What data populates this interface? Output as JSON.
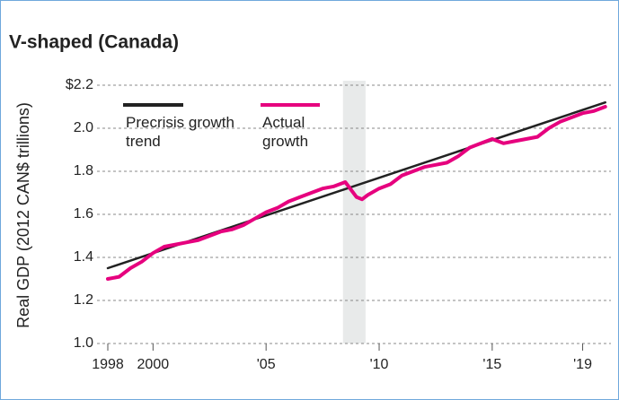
{
  "chart_data": {
    "type": "line",
    "title": "V-shaped (Canada)",
    "y_label": "Real GDP (2012 CAN$ trillions)",
    "xlim": [
      1998,
      2020.25
    ],
    "xticks": [
      {
        "value": 1998,
        "label": "1998"
      },
      {
        "value": 2000,
        "label": "2000"
      },
      {
        "value": 2005,
        "label": "'05"
      },
      {
        "value": 2010,
        "label": "'10"
      },
      {
        "value": 2015,
        "label": "'15"
      },
      {
        "value": 2019,
        "label": "'19"
      }
    ],
    "ylim": [
      1.0,
      2.2
    ],
    "yticks": [
      {
        "value": 1.0,
        "label": "1.0"
      },
      1.2,
      1.4,
      1.6,
      1.8,
      {
        "value": 2.0,
        "label": "2.0"
      },
      {
        "value": 2.2,
        "label": "$2.2"
      }
    ],
    "grid": true,
    "shade": {
      "x": [
        2008.4,
        2009.4
      ],
      "color": "#e8eaea"
    },
    "series": [
      {
        "name": "Precrisis growth trend",
        "color": "#222222",
        "x": [
          1998,
          2020
        ],
        "values": [
          1.35,
          2.12
        ]
      },
      {
        "name": "Actual growth",
        "color": "#e6007e",
        "x": [
          1998,
          1998.5,
          1999,
          1999.5,
          2000,
          2000.5,
          2001,
          2001.5,
          2002,
          2002.5,
          2003,
          2003.5,
          2004,
          2004.5,
          2005,
          2005.5,
          2006,
          2006.5,
          2007,
          2007.5,
          2008,
          2008.5,
          2009,
          2009.25,
          2009.5,
          2010,
          2010.5,
          2011,
          2011.5,
          2012,
          2012.5,
          2013,
          2013.5,
          2014,
          2014.5,
          2015,
          2015.5,
          2016,
          2016.5,
          2017,
          2017.5,
          2018,
          2018.5,
          2019,
          2019.5,
          2020
        ],
        "values": [
          1.3,
          1.31,
          1.35,
          1.38,
          1.42,
          1.45,
          1.46,
          1.47,
          1.48,
          1.5,
          1.52,
          1.53,
          1.55,
          1.58,
          1.61,
          1.63,
          1.66,
          1.68,
          1.7,
          1.72,
          1.73,
          1.75,
          1.68,
          1.67,
          1.69,
          1.72,
          1.74,
          1.78,
          1.8,
          1.82,
          1.83,
          1.84,
          1.87,
          1.91,
          1.93,
          1.95,
          1.93,
          1.94,
          1.95,
          1.96,
          2.0,
          2.03,
          2.05,
          2.07,
          2.08,
          2.1
        ]
      }
    ]
  }
}
